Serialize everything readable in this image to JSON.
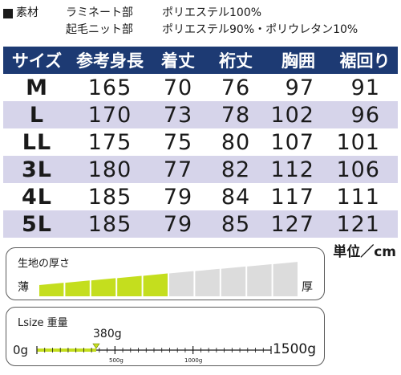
{
  "material": {
    "heading": "素材",
    "rows": [
      {
        "part": "ラミネート部",
        "composition": "ポリエステル100%"
      },
      {
        "part": "起毛ニット部",
        "composition": "ポリエステル90%・ポリウレタン10%"
      }
    ]
  },
  "size_table": {
    "headers": [
      "サイズ",
      "参考身長",
      "着丈",
      "裄丈",
      "胸囲",
      "裾回り"
    ],
    "rows": [
      [
        "M",
        "165",
        "70",
        "76",
        "97",
        "91"
      ],
      [
        "L",
        "170",
        "73",
        "78",
        "102",
        "96"
      ],
      [
        "LL",
        "175",
        "75",
        "80",
        "107",
        "101"
      ],
      [
        "3L",
        "180",
        "77",
        "82",
        "112",
        "106"
      ],
      [
        "4L",
        "185",
        "79",
        "84",
        "117",
        "111"
      ],
      [
        "5L",
        "185",
        "79",
        "85",
        "127",
        "121"
      ]
    ],
    "unit": "単位／cm"
  },
  "thickness": {
    "title": "生地の厚さ",
    "thin_label": "薄",
    "thick_label": "厚",
    "level": 5,
    "total": 10,
    "active_color": "#c4de1e",
    "inactive_color": "#dcdcdc"
  },
  "weight": {
    "title": "Lsize 重量",
    "value": 380,
    "value_label": "380g",
    "min_label": "0g",
    "max_label": "1500g",
    "tick_500_label": "500g",
    "tick_1000_label": "1000g",
    "max": 1500,
    "active_color": "#c4de1e"
  }
}
